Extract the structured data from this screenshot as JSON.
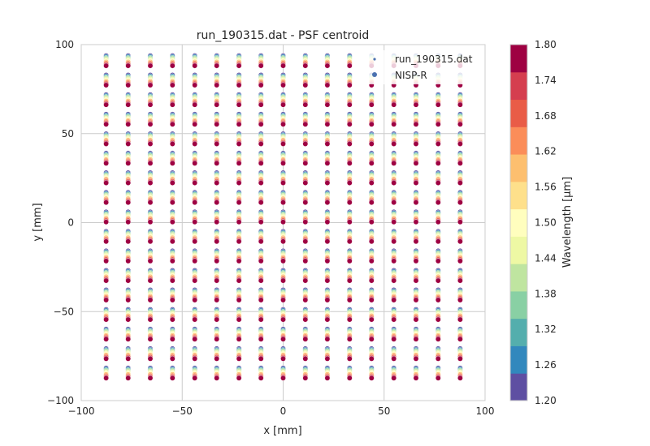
{
  "chart_data": {
    "type": "scatter",
    "title": "run_190315.dat - PSF centroid",
    "xlabel": "x [mm]",
    "ylabel": "y [mm]",
    "xlim": [
      -100,
      100
    ],
    "ylim": [
      -100,
      100
    ],
    "xticks": [
      -100,
      -50,
      0,
      50,
      100
    ],
    "yticks": [
      -100,
      -50,
      0,
      50,
      100
    ],
    "xtick_labels": [
      "−100",
      "−50",
      "0",
      "50",
      "100"
    ],
    "ytick_labels": [
      "−100",
      "−50",
      "0",
      "50",
      "100"
    ],
    "grid": true,
    "legend": {
      "position": "top-right",
      "entries": [
        {
          "label": "run_190315.dat",
          "color": "#4c72b0",
          "marker": "small-dot"
        },
        {
          "label": "NISP-R",
          "color": "#4c72b0",
          "marker": "dot"
        }
      ]
    },
    "field_grid": {
      "x": [
        -87.7,
        -76.8,
        -65.8,
        -54.8,
        -43.8,
        -32.9,
        -21.9,
        -11.0,
        0.0,
        11.0,
        21.9,
        32.9,
        43.8,
        54.8,
        65.8,
        76.8,
        87.7
      ],
      "y": [
        88.0,
        77.1,
        66.1,
        55.1,
        44.1,
        33.2,
        22.2,
        11.2,
        0.2,
        -10.7,
        -21.7,
        -32.7,
        -43.6,
        -54.6,
        -65.6,
        -76.6,
        -87.5
      ]
    },
    "wavelength_samples_um": [
      1.22,
      1.28,
      1.34,
      1.4,
      1.46,
      1.52,
      1.58,
      1.64,
      1.7,
      1.76,
      1.79
    ],
    "dispersion_y_mm_per_um": 10.0,
    "colorbar": {
      "label": "Wavelength [µm]",
      "min": 1.2,
      "max": 1.8,
      "tick_labels": [
        "1.20",
        "1.26",
        "1.32",
        "1.38",
        "1.44",
        "1.50",
        "1.56",
        "1.62",
        "1.68",
        "1.74",
        "1.80"
      ],
      "colors": [
        "#5e4fa2",
        "#3288bd",
        "#54aead",
        "#89d0a4",
        "#bfe5a0",
        "#eef8a4",
        "#fffebe",
        "#fee08b",
        "#fdbf6f",
        "#fb8d59",
        "#e95c47",
        "#d53e4f",
        "#9e0142"
      ]
    }
  }
}
